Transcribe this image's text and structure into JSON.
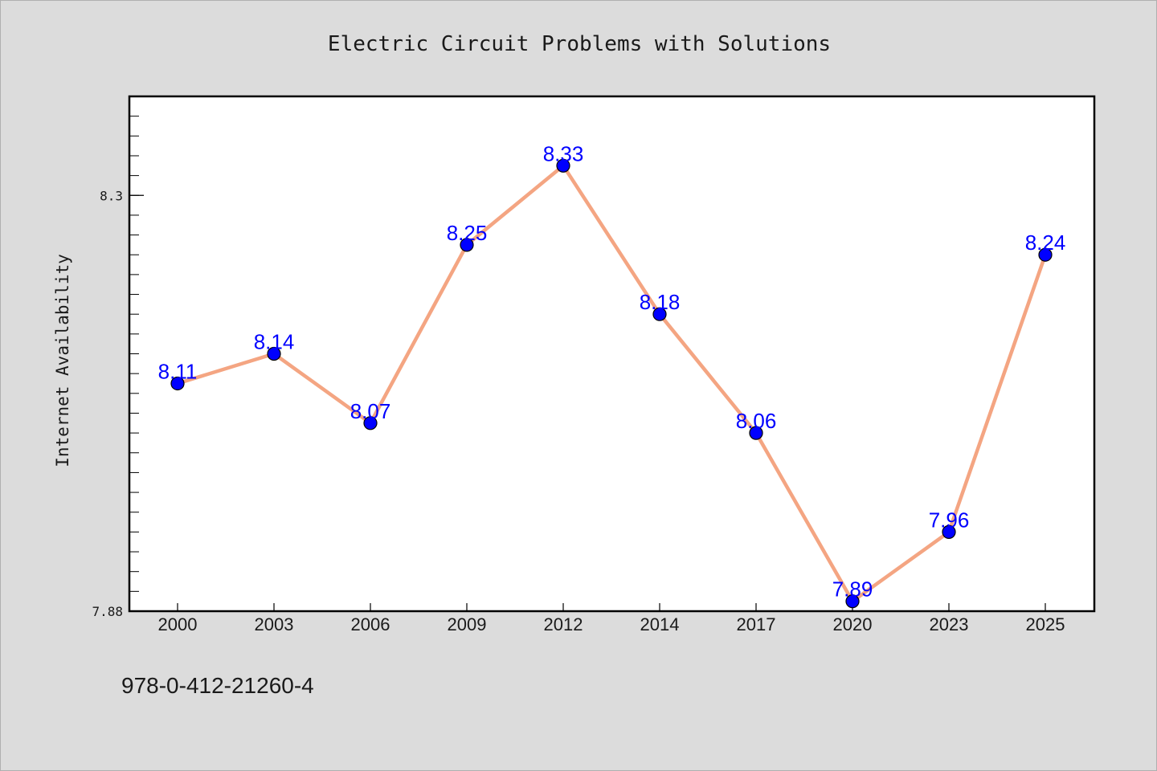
{
  "chart_data": {
    "type": "line",
    "title": "Electric Circuit Problems with Solutions",
    "xlabel": "",
    "ylabel": "Internet Availability",
    "categories": [
      "2000",
      "2003",
      "2006",
      "2009",
      "2012",
      "2014",
      "2017",
      "2020",
      "2023",
      "2025"
    ],
    "series": [
      {
        "values": [
          8.11,
          8.14,
          8.07,
          8.25,
          8.33,
          8.18,
          8.06,
          7.89,
          7.96,
          8.24
        ],
        "value_labels": [
          "8.11",
          "8.14",
          "8.07",
          "8.25",
          "8.33",
          "8.18",
          "8.06",
          "7.89",
          "7.96",
          "8.24"
        ],
        "line_color": "#f4a582",
        "marker_color": "#0000ff"
      }
    ],
    "ylim": [
      7.88,
      8.4
    ],
    "yticks": [
      7.88,
      8.3
    ],
    "ytick_labels": [
      "7.88",
      "8.3"
    ],
    "grid": false,
    "legend": "none"
  },
  "footer": {
    "isbn": "978-0-412-21260-4"
  }
}
